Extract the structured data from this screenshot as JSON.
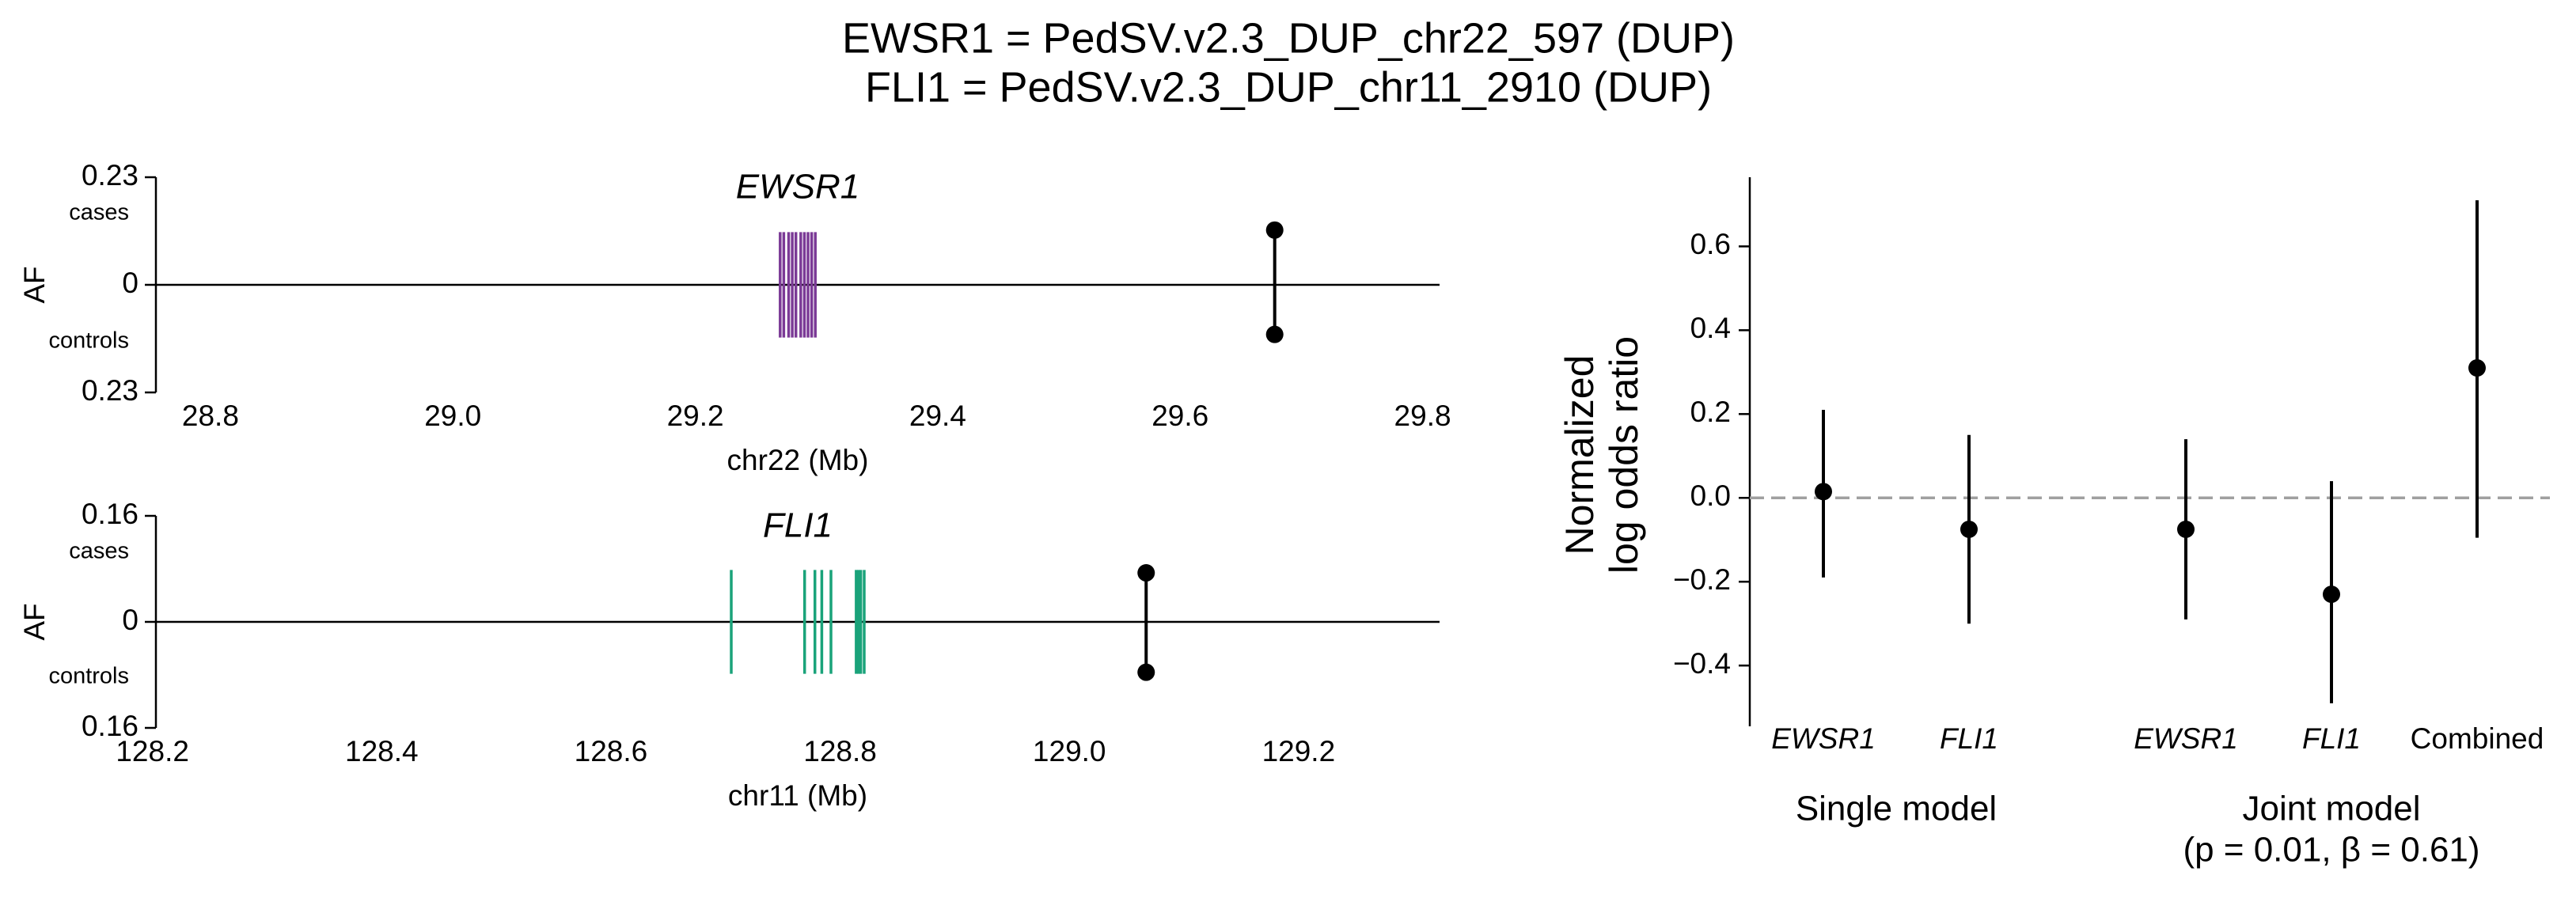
{
  "title": [
    "EWSR1 = PedSV.v2.3_DUP_chr22_597 (DUP)",
    "FLI1 = PedSV.v2.3_DUP_chr11_2910 (DUP)"
  ],
  "chart_data": [
    {
      "type": "locus",
      "gene": "EWSR1",
      "color": "#7b3a96",
      "exons": [
        29.27,
        29.273,
        29.277,
        29.28,
        29.283,
        29.287,
        29.29,
        29.293,
        29.296,
        29.299
      ],
      "xlim": [
        28.755,
        29.814
      ],
      "xticks": [
        28.8,
        {
          "value": 29,
          "label": "29.0"
        },
        29.2,
        29.4,
        29.6,
        29.8
      ],
      "xlabel": "chr22 (Mb)",
      "ylabel": "AF",
      "ylim": [
        -0.23,
        0.23
      ],
      "yticks": [
        {
          "value": -0.23,
          "label": "0.23"
        },
        0,
        0.23
      ],
      "top_label": "cases",
      "bottom_label": "controls",
      "variant": {
        "x": 29.678,
        "cases": 0.117,
        "controls": -0.106
      }
    },
    {
      "type": "locus",
      "gene": "FLI1",
      "color": "#1aa37a",
      "exons": [
        128.705,
        128.769,
        128.778,
        128.784,
        128.792,
        128.814,
        128.816,
        128.818,
        128.821
      ],
      "xlim": [
        128.203,
        129.323
      ],
      "xticks": [
        128.2,
        128.4,
        128.6,
        128.8,
        {
          "value": 129,
          "label": "129.0"
        },
        129.2
      ],
      "xlabel": "chr11 (Mb)",
      "ylabel": "AF",
      "ylim": [
        -0.16,
        0.16
      ],
      "yticks": [
        {
          "value": -0.16,
          "label": "0.16"
        },
        0,
        0.16
      ],
      "top_label": "cases",
      "bottom_label": "controls",
      "variant": {
        "x": 129.067,
        "cases": 0.074,
        "controls": -0.076
      }
    },
    {
      "type": "forest",
      "ylabel": [
        "Normalized",
        "log odds ratio"
      ],
      "ylim": [
        -0.545,
        0.765
      ],
      "yticks": [
        {
          "value": -0.4,
          "label": "−0.4"
        },
        {
          "value": -0.2,
          "label": "−0.2"
        },
        {
          "value": 0,
          "label": "0.0"
        },
        0.2,
        0.4,
        0.6
      ],
      "hline": 0,
      "groups": [
        {
          "label": "Single model",
          "categories": [
            "EWSR1",
            "FLI1"
          ],
          "italic": [
            true,
            true
          ],
          "values": [
            0.015,
            -0.075
          ],
          "lower": [
            -0.19,
            -0.3
          ],
          "upper": [
            0.21,
            0.15
          ]
        },
        {
          "label": "Joint model",
          "sublabel": "(p = 0.01, β = 0.61)",
          "categories": [
            "EWSR1",
            "FLI1",
            "Combined"
          ],
          "italic": [
            true,
            true,
            false
          ],
          "values": [
            -0.075,
            -0.23,
            0.31
          ],
          "lower": [
            -0.29,
            -0.49,
            -0.095
          ],
          "upper": [
            0.14,
            0.04,
            0.71
          ]
        }
      ]
    }
  ]
}
